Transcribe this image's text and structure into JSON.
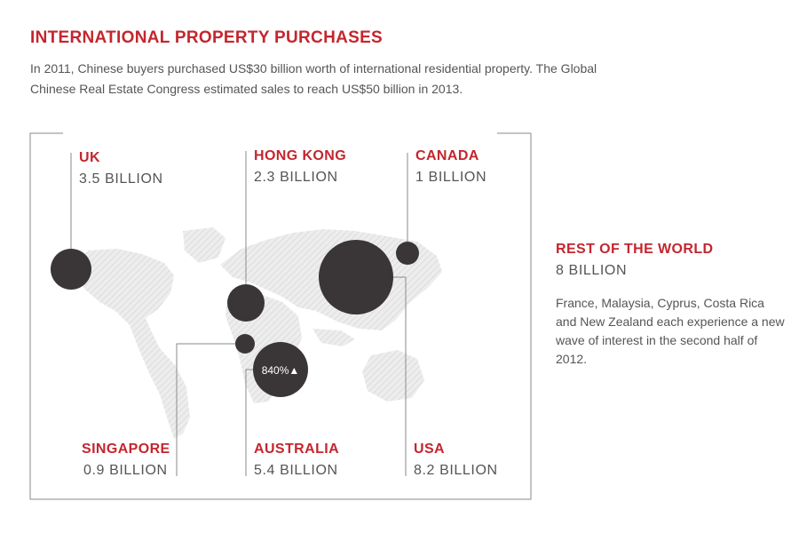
{
  "title": "INTERNATIONAL PROPERTY PURCHASES",
  "subtitle": "In 2011, Chinese buyers purchased US$30 billion worth of international residential property. The Global Chinese Real Estate Congress estimated sales to reach US$50 billion in 2013.",
  "colors": {
    "accent": "#c4262e",
    "bubble": "#3a3637",
    "text": "#555555",
    "line": "#8a8a8a",
    "map": "#e4e4e4"
  },
  "chart_data": {
    "type": "bubble-map",
    "unit": "billion US$",
    "series": [
      {
        "name": "UK",
        "label": "UK",
        "value_text": "3.5 BILLION",
        "value": 3.5
      },
      {
        "name": "Hong Kong",
        "label": "HONG KONG",
        "value_text": "2.3 BILLION",
        "value": 2.3
      },
      {
        "name": "Canada",
        "label": "CANADA",
        "value_text": "1 BILLION",
        "value": 1
      },
      {
        "name": "Singapore",
        "label": "SINGAPORE",
        "value_text": "0.9 BILLION",
        "value": 0.9
      },
      {
        "name": "Australia",
        "label": "AUSTRALIA",
        "value_text": "5.4 BILLION",
        "value": 5.4,
        "badge": "840%▲"
      },
      {
        "name": "USA",
        "label": "USA",
        "value_text": "8.2 BILLION",
        "value": 8.2
      }
    ],
    "rest_of_world": {
      "label": "REST OF THE WORLD",
      "value_text": "8 BILLION",
      "value": 8,
      "note": "France, Malaysia, Cyprus, Costa Rica and New Zealand each experience a new wave of interest in the second half of 2012."
    }
  }
}
